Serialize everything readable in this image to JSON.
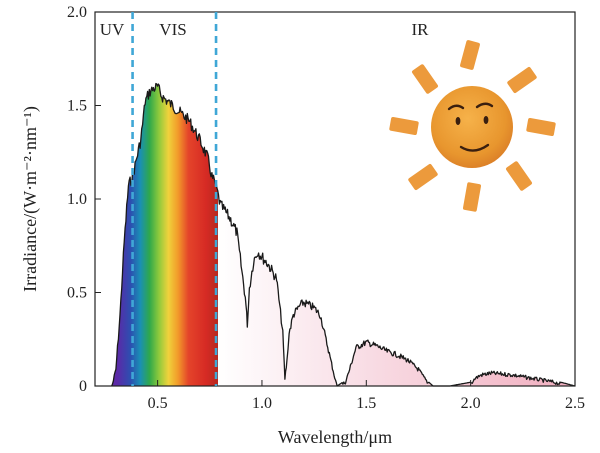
{
  "chart_data": {
    "type": "area",
    "xlabel": "Wavelength/μm",
    "ylabel": "Irradiance/(W·m⁻²·nm⁻¹)",
    "xlim": [
      0.2,
      2.5
    ],
    "ylim": [
      0,
      2.0
    ],
    "xticks": [
      {
        "value": 0.5,
        "label": "0.5"
      },
      {
        "value": 1.0,
        "label": "1.0"
      },
      {
        "value": 1.5,
        "label": "1.5"
      },
      {
        "value": 2.0,
        "label": "2.0"
      },
      {
        "value": 2.5,
        "label": "2.5"
      }
    ],
    "yticks": [
      {
        "value": 0,
        "label": "0"
      },
      {
        "value": 0.5,
        "label": "0.5"
      },
      {
        "value": 1.0,
        "label": "1.0"
      },
      {
        "value": 1.5,
        "label": "1.5"
      },
      {
        "value": 2.0,
        "label": "2.0"
      }
    ],
    "regions": [
      {
        "label": "UV",
        "start": 0.2,
        "end": 0.38
      },
      {
        "label": "VIS",
        "start": 0.38,
        "end": 0.78
      },
      {
        "label": "IR",
        "start": 0.78,
        "end": 2.5
      }
    ],
    "region_boundaries": [
      0.38,
      0.78
    ],
    "grid": false,
    "series": [
      {
        "x": [
          0.28,
          0.3,
          0.32,
          0.34,
          0.36,
          0.38,
          0.4,
          0.42,
          0.44,
          0.46,
          0.48,
          0.5,
          0.52,
          0.55,
          0.6,
          0.65,
          0.7,
          0.72,
          0.74,
          0.76,
          0.78,
          0.8,
          0.82,
          0.85,
          0.88,
          0.92,
          0.93,
          0.94,
          0.96,
          0.98,
          1.0,
          1.03,
          1.07,
          1.1,
          1.11,
          1.12,
          1.13,
          1.15,
          1.18,
          1.2,
          1.25,
          1.28,
          1.3,
          1.33,
          1.36,
          1.4,
          1.42,
          1.45,
          1.5,
          1.55,
          1.6,
          1.65,
          1.7,
          1.75,
          1.78,
          1.8,
          1.82,
          1.85,
          1.9,
          1.95,
          2.0,
          2.02,
          2.05,
          2.1,
          2.2,
          2.3,
          2.4,
          2.5
        ],
        "y": [
          0.0,
          0.1,
          0.4,
          0.8,
          1.1,
          1.15,
          1.25,
          1.35,
          1.55,
          1.6,
          1.62,
          1.63,
          1.58,
          1.55,
          1.5,
          1.45,
          1.35,
          1.3,
          1.25,
          1.15,
          1.1,
          1.0,
          0.97,
          0.92,
          0.85,
          0.5,
          0.35,
          0.55,
          0.7,
          0.75,
          0.72,
          0.68,
          0.6,
          0.3,
          0.05,
          0.15,
          0.3,
          0.4,
          0.45,
          0.47,
          0.44,
          0.4,
          0.3,
          0.15,
          0.0,
          0.03,
          0.1,
          0.22,
          0.25,
          0.23,
          0.2,
          0.18,
          0.15,
          0.1,
          0.05,
          0.02,
          0.0,
          0.0,
          0.0,
          0.01,
          0.02,
          0.05,
          0.07,
          0.08,
          0.07,
          0.05,
          0.03,
          0.0
        ]
      }
    ],
    "colors": {
      "boundary_line": "#3fa7d6",
      "curve": "#1a1a1a",
      "ir_fill": "#f1b7c6",
      "sun_body": "#e8962e",
      "sun_ray": "#ec9a3c",
      "face": "#3a1f0f"
    },
    "icons": [
      "sun-icon"
    ]
  }
}
